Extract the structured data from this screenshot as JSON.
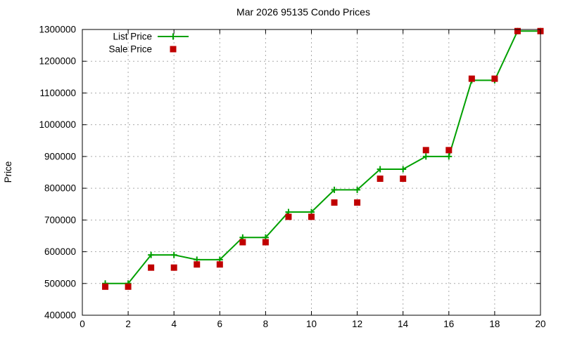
{
  "chart_data": {
    "type": "line",
    "title": "Mar 2026 95135 Condo Prices",
    "xlabel": "",
    "ylabel": "Price",
    "x": [
      1,
      2,
      3,
      4,
      5,
      6,
      7,
      8,
      9,
      10,
      11,
      12,
      13,
      14,
      15,
      16,
      17,
      18,
      19,
      20
    ],
    "series": [
      {
        "name": "List Price",
        "color": "#00a000",
        "marker": "plus",
        "mode": "line+markers",
        "values": [
          500000,
          500000,
          590000,
          590000,
          575000,
          575000,
          645000,
          645000,
          725000,
          725000,
          795000,
          795000,
          860000,
          860000,
          900000,
          900000,
          1140000,
          1140000,
          1295000,
          1295000
        ]
      },
      {
        "name": "Sale Price",
        "color": "#c00000",
        "marker": "square",
        "mode": "markers",
        "values": [
          490000,
          490000,
          550000,
          550000,
          560000,
          560000,
          630000,
          630000,
          710000,
          710000,
          755000,
          755000,
          830000,
          830000,
          920000,
          920000,
          1145000,
          1145000,
          1295000,
          1295000
        ]
      }
    ],
    "xlim": [
      0,
      20
    ],
    "ylim": [
      400000,
      1300000
    ],
    "x_ticks": [
      0,
      2,
      4,
      6,
      8,
      10,
      12,
      14,
      16,
      18,
      20
    ],
    "y_ticks": [
      400000,
      500000,
      600000,
      700000,
      800000,
      900000,
      1000000,
      1100000,
      1200000,
      1300000
    ],
    "grid": true,
    "legend_position": "top-left-inside",
    "colors": {
      "grid": "#aaaaaa",
      "border": "#000000",
      "background": "#ffffff"
    }
  }
}
